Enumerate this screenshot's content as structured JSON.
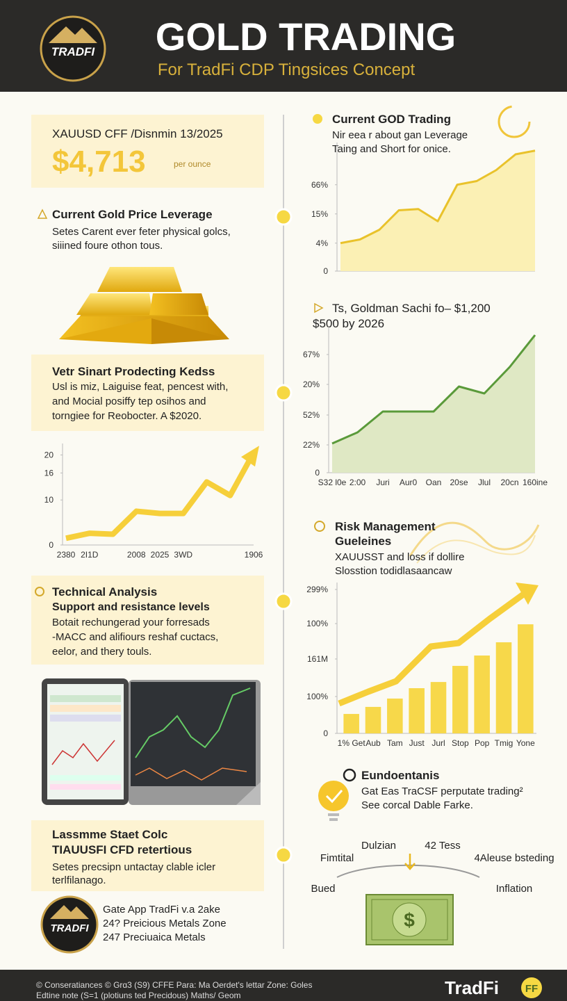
{
  "header": {
    "logo": "TRADFI",
    "title": "GOLD TRADING",
    "subtitle": "For TradFi CDP Tingsices Concept"
  },
  "price_card": {
    "label": "XAUUSD CFF /Disnmin 13/2025",
    "price": "$4,713",
    "unit": "per ounce"
  },
  "leverage": {
    "title": "Current Gold Price Leverage",
    "lines": [
      "Setes Carent ever feter physical golcs,",
      "siiined foure othon tous."
    ]
  },
  "strategy": {
    "title": "Vetr Sinart Prodecting Kedss",
    "lines": [
      "Usl is miz, Laiguise feat, pencest with,",
      "and Mocial posiffy tep osihos and",
      "torngiee for Reobocter. A $2020."
    ]
  },
  "technical": {
    "title": "Technical Analysis",
    "subtitle": "Support and resistance levels",
    "lines": [
      "Botait rechungerad your forresads",
      "-MACC and alifiours reshaf cuctacs,",
      "eelor, and thery touls."
    ]
  },
  "cfd": {
    "title": "Lassmme Staet Colc",
    "subtitle": "TIAUUSFI CFD retertious",
    "lines": [
      "Setes precsipn untactay clable icler",
      "terlfilanago."
    ]
  },
  "app": {
    "logo": "TRADFI",
    "lines": [
      "Gate App TradFi v.a 2ake",
      "24? Preicious Metals Zone",
      "247 Preciuaica Metals"
    ]
  },
  "current": {
    "title": "Current GOD Trading",
    "lines": [
      "Nir eea r about gan Leverage",
      "Taing and Short for onice."
    ]
  },
  "forecast": {
    "lines": [
      "Ts, Goldman Sachi fo– $1,200",
      "$500 by 2026"
    ]
  },
  "risk": {
    "title": [
      "Risk Management",
      "Gueleines"
    ],
    "lines": [
      "XAUUSST and loss if dollire",
      "Slosstion todidlasaancaw"
    ]
  },
  "fundamentals": {
    "title": "Eundoentanis",
    "lines": [
      "Gat Eas TraCSF perputate trading²",
      "See corcal Dable Farke."
    ]
  },
  "diagram": {
    "labels": [
      "Dulzian",
      "42 Tess",
      "Fimtital",
      "4Aleuse bsteding",
      "Bued",
      "Inflation"
    ]
  },
  "footer": {
    "lines": [
      "© Conseratiances © Grɑ3 (S9) CFFE Para: Ma Oerdet's lettar Zone: Goles",
      "Edtine note (S=1 (plotiuns ted Precidous) Maths/ Geom"
    ],
    "brand": "TradFi",
    "brand_badge": "FF"
  },
  "charts": [
    {
      "type": "line",
      "categories": [
        "2380",
        "2I1D",
        null,
        "2008",
        "2025",
        "3WD",
        null,
        null,
        "1906"
      ],
      "values": [
        1.5,
        2.6,
        2.4,
        7.5,
        7,
        7,
        14,
        11,
        20.5
      ],
      "ylim": [
        0,
        21
      ],
      "yticks": [
        0,
        10,
        16,
        20
      ],
      "color": "#f6cf3a"
    },
    {
      "type": "line",
      "values": [
        23,
        26,
        34,
        50,
        51,
        41,
        71,
        74,
        83,
        96,
        99
      ],
      "ylim": [
        0,
        100
      ],
      "yticks": [
        0,
        {
          "value": 23,
          "label": "4%"
        },
        {
          "value": 47,
          "label": "15%"
        },
        {
          "value": 71,
          "label": "66%"
        }
      ],
      "color": "#e9c22b",
      "fill": "#fbf0b4"
    },
    {
      "type": "line",
      "categories": [
        "S32 l0e",
        "2:00",
        "Juri",
        "Aur0",
        "Oan",
        "20se",
        "Jlul",
        "20cn",
        "160ine"
      ],
      "values": [
        21,
        29,
        44,
        44,
        44,
        62,
        57,
        76,
        99
      ],
      "ylim": [
        0,
        100
      ],
      "yticks": [
        0,
        {
          "value": 20,
          "label": "22%"
        },
        {
          "value": 41.5,
          "label": "52%"
        },
        {
          "value": 63.5,
          "label": "20%"
        },
        {
          "value": 85,
          "label": "67%"
        }
      ],
      "color": "#5a9a3a",
      "fill": "#dfe8c4"
    },
    {
      "type": "bar",
      "categories": [
        "1% Get",
        "Aub",
        "Tam",
        "Just",
        "Jurl",
        "Stop",
        "Pop",
        "Tmig",
        "Yone"
      ],
      "values": [
        13.5,
        18.4,
        24.2,
        31.4,
        35.7,
        46.9,
        54.1,
        63.3,
        75.8
      ],
      "ylim": [
        0,
        100
      ],
      "yticks": [
        0,
        {
          "value": 25.6,
          "label": "100%"
        },
        {
          "value": 51.7,
          "label": "161M"
        },
        {
          "value": 76.3,
          "label": "100%"
        },
        {
          "value": 100,
          "label": "299%"
        }
      ],
      "color": "#f7d84a"
    }
  ]
}
